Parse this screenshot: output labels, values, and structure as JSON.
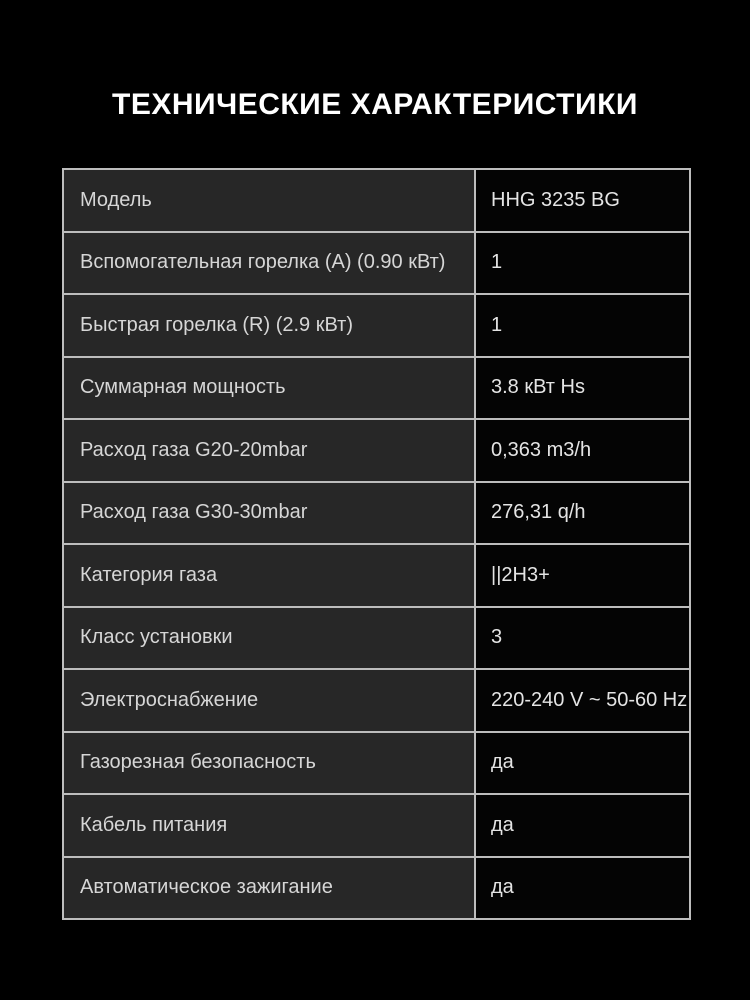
{
  "page": {
    "title": "ТЕХНИЧЕСКИЕ ХАРАКТЕРИСТИКИ"
  },
  "colors": {
    "background": "#000000",
    "label_cell_bg": "#272727",
    "value_cell_bg": "#040404",
    "border": "#bdbdbd",
    "label_text": "#d6d6d6",
    "value_text": "#e4e4e4",
    "title_text": "#ffffff"
  },
  "spec_table": {
    "rows": [
      {
        "label": "Модель",
        "value": "HHG 3235 BG"
      },
      {
        "label": "Вспомогательная горелка (A) (0.90 кВт)",
        "value": "1"
      },
      {
        "label": "Быстрая горелка (R) (2.9 кВт)",
        "value": "1"
      },
      {
        "label": "Суммарная мощность",
        "value": "3.8 кВт Hs"
      },
      {
        "label": "Расход газа G20-20mbar",
        "value": "0,363 m3/h"
      },
      {
        "label": "Расход газа G30-30mbar",
        "value": "276,31 q/h"
      },
      {
        "label": "Категория газа",
        "value": "||2H3+"
      },
      {
        "label": "Класс установки",
        "value": "3"
      },
      {
        "label": "Электроснабжение",
        "value": "220-240 V ~ 50-60 Hz"
      },
      {
        "label": "Газорезная безопасность",
        "value": "да"
      },
      {
        "label": "Кабель питания",
        "value": "да"
      },
      {
        "label": "Автоматическое зажигание",
        "value": "да"
      }
    ]
  }
}
